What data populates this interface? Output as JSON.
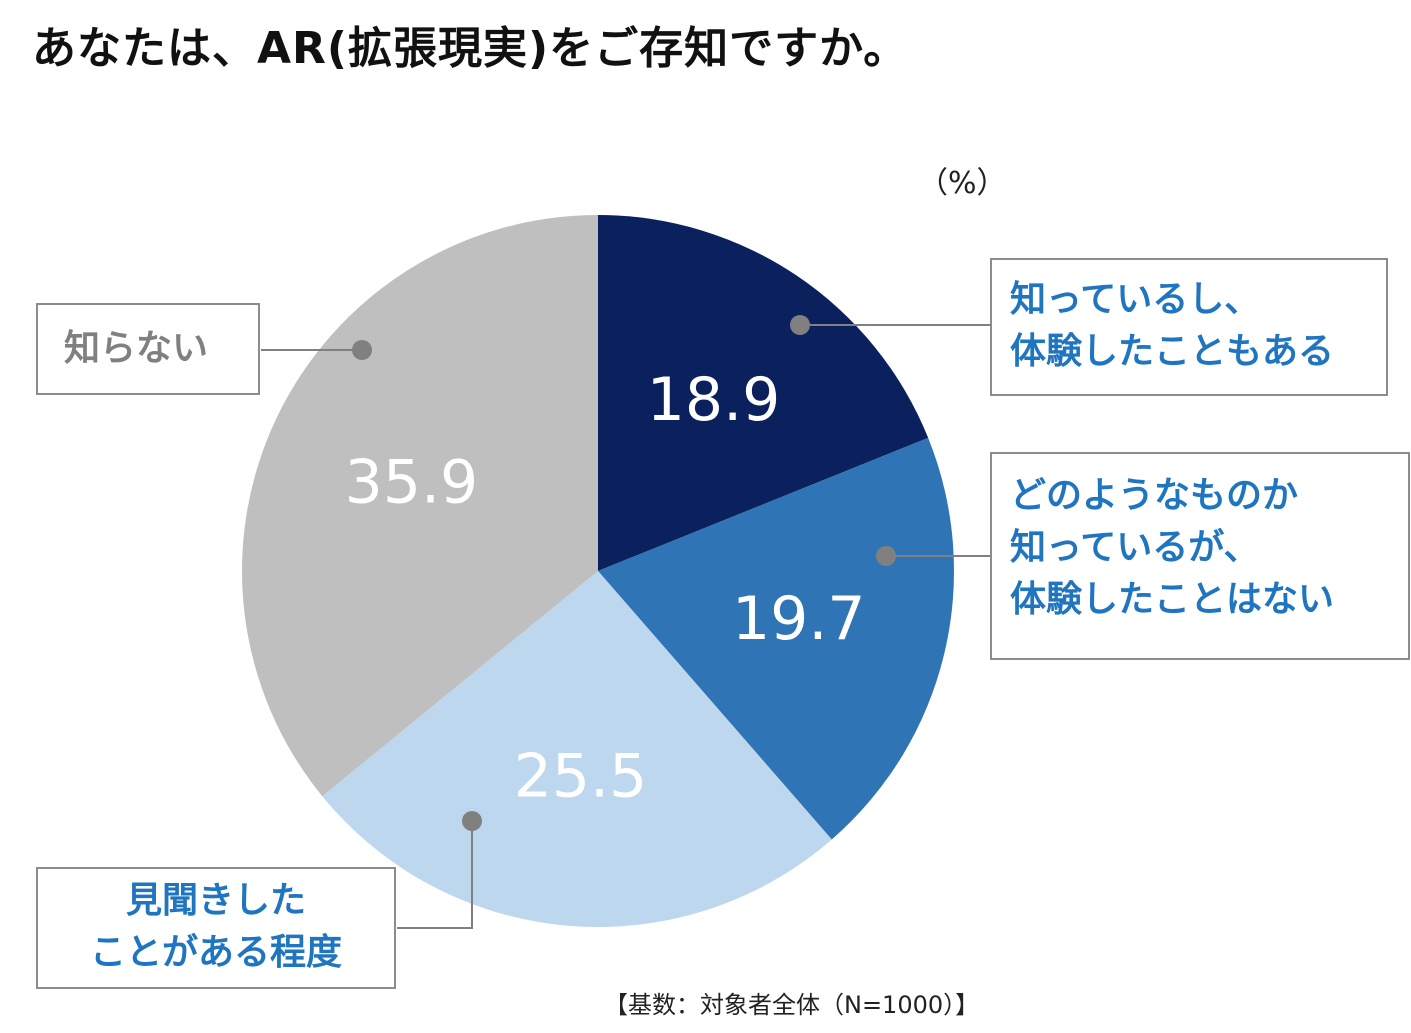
{
  "title": "あなたは、AR(拡張現実)をご存知ですか。",
  "unit": "（%）",
  "footnote": "【基数：対象者全体（N=1000）】",
  "colors": {
    "slice_a": "#0b215e",
    "slice_b": "#2f75b5",
    "slice_c": "#bdd7ee",
    "slice_d": "#bfbfbf",
    "label_blue": "#1f75c0",
    "label_gray": "#808080",
    "leader": "#808080"
  },
  "labels": {
    "a": "知っているし、\n体験したこともある",
    "b": "どのようなものか\n知っているが、\n体験したことはない",
    "c": "見聞きした\nことがある程度",
    "d": "知らない"
  },
  "chart_data": {
    "type": "pie",
    "categories": [
      "知っているし、体験したこともある",
      "どのようなものか知っているが、体験したことはない",
      "見聞きしたことがある程度",
      "知らない"
    ],
    "values": [
      18.9,
      19.7,
      25.5,
      35.9
    ],
    "value_labels": [
      "18.9",
      "19.7",
      "25.5",
      "35.9"
    ],
    "colors": [
      "#0b215e",
      "#2f75b5",
      "#bdd7ee",
      "#bfbfbf"
    ],
    "start": "12 o'clock",
    "direction": "clockwise"
  }
}
